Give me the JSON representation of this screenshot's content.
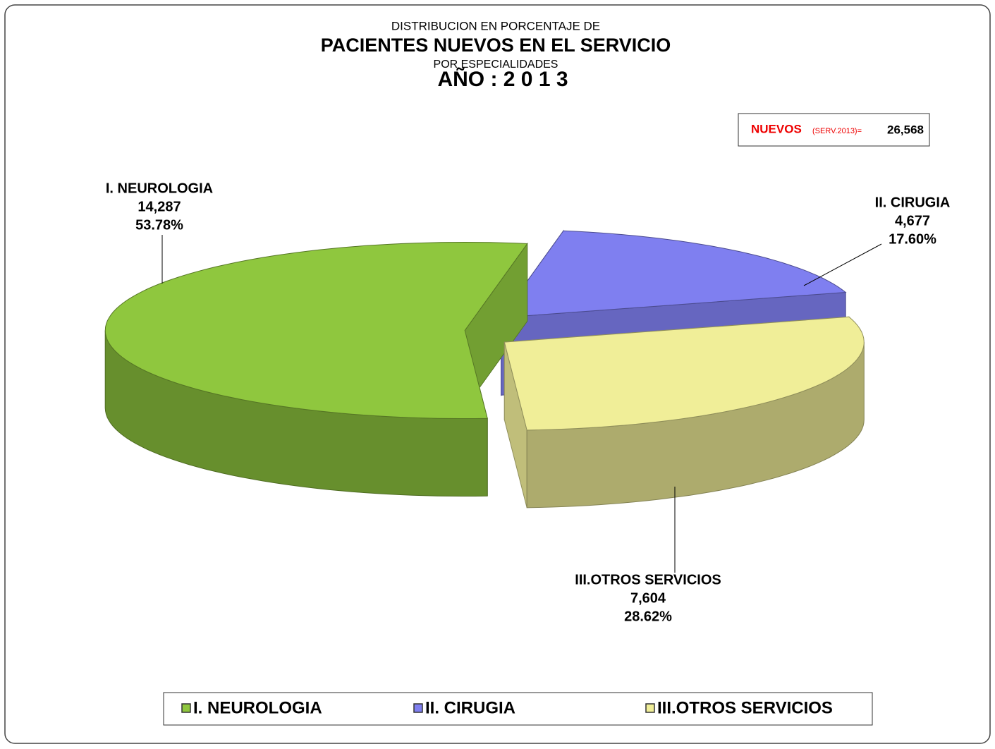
{
  "chart_data": {
    "type": "pie",
    "title_top": "DISTRIBUCION EN PORCENTAJE DE",
    "title": "PACIENTES NUEVOS EN EL SERVICIO",
    "subtitle": "POR ESPECIALIDADES",
    "year_title": "AÑO : 2 0 1 3",
    "total": {
      "label": "NUEVOS",
      "note": "(SERV.2013)=",
      "value": 26568,
      "value_label": "26,568"
    },
    "categories": [
      "I.  NEUROLOGIA",
      "II.  CIRUGIA",
      "III.OTROS SERVICIOS"
    ],
    "values": [
      14287,
      4677,
      7604
    ],
    "value_labels": [
      "14,287",
      "4,677",
      "7,604"
    ],
    "percent_labels": [
      "53.78%",
      "17.60%",
      "28.62%"
    ],
    "colors": [
      "#8fc73e",
      "#7f7ff0",
      "#f0ee98"
    ],
    "legend": "bottom"
  }
}
